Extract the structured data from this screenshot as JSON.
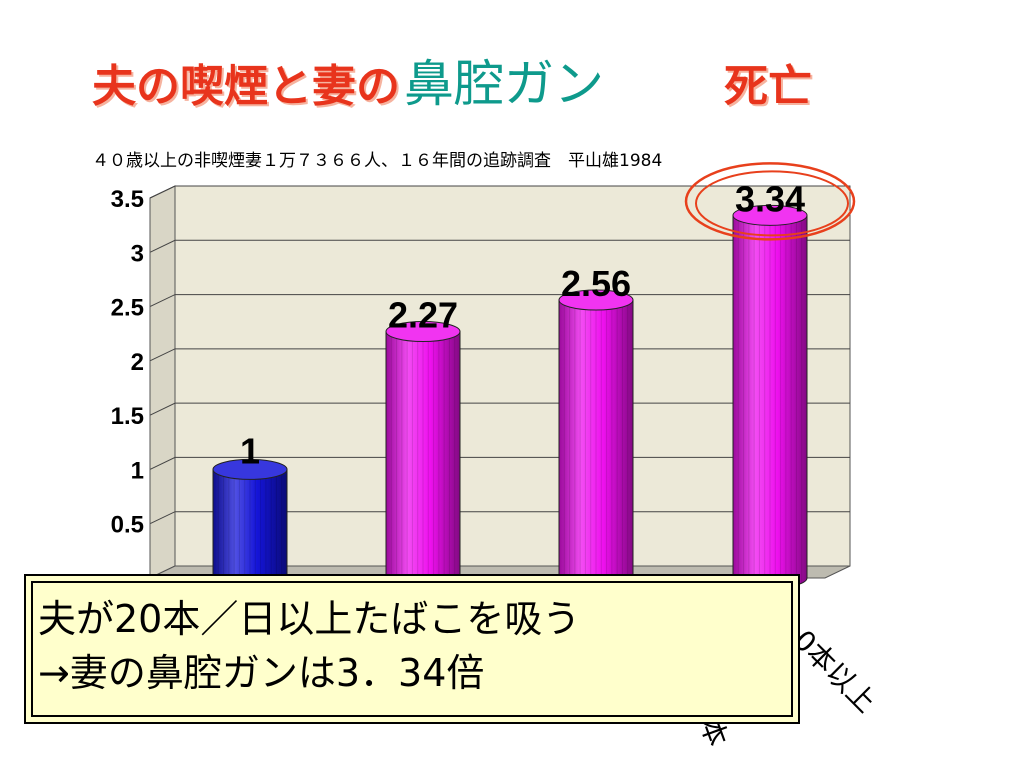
{
  "slide": {
    "title_part1": "夫の喫煙と妻の",
    "title_part2": "鼻腔ガン",
    "title_part3": "死亡",
    "subtitle": "４０歳以上の非喫煙妻１万７３６６人、１６年間の追跡調査　平山雄1984",
    "callout_line1": "夫が20本／日以上たばこを吸う",
    "callout_line2": "→妻の鼻腔ガンは3．34倍"
  },
  "colors": {
    "title_red": "#e8341c",
    "title_teal": "#0e9a8c",
    "bar_blue": "#1414d8",
    "bar_magenta": "#ee10ee",
    "highlight_ring": "#e8401c",
    "callout_bg": "#ffffcc",
    "plot_bg": "#ece9d8"
  },
  "chart_data": {
    "type": "bar",
    "categories": [
      "",
      "",
      "",
      ""
    ],
    "visible_category_fragments": [
      "",
      "",
      "本",
      "0本以上"
    ],
    "values": [
      1,
      2.27,
      2.56,
      3.34
    ],
    "data_labels": [
      "1",
      "2.27",
      "2.56",
      "3.34"
    ],
    "highlighted_index": 3,
    "ylim": [
      0,
      3.5
    ],
    "yticks": [
      0.5,
      1,
      1.5,
      2,
      2.5,
      3,
      3.5
    ],
    "ytick_labels": [
      "0.5",
      "1",
      "1.5",
      "2",
      "2.5",
      "3",
      "3.5"
    ],
    "grid": true,
    "bar_style": "3d-cylinder"
  }
}
